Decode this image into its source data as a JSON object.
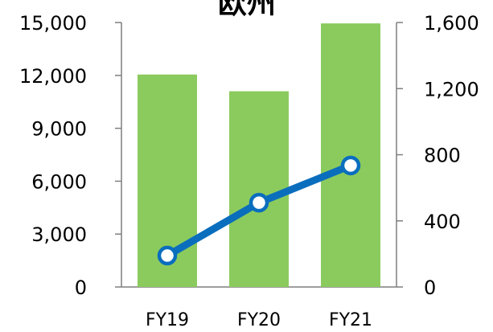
{
  "chart_data": {
    "type": "bar",
    "title": "欧州",
    "categories": [
      "FY19",
      "FY20",
      "FY21"
    ],
    "series": [
      {
        "type": "bar",
        "axis": "left",
        "values": [
          12050,
          11100,
          14950
        ],
        "color": "#8bcb5e"
      },
      {
        "type": "line",
        "axis": "right",
        "values": [
          190,
          510,
          735
        ],
        "color": "#0a6ebd"
      }
    ],
    "left_axis": {
      "ylim": [
        0,
        15000
      ],
      "ticks": [
        0,
        3000,
        6000,
        9000,
        12000,
        15000
      ],
      "tick_labels": [
        "0",
        "3,000",
        "6,000",
        "9,000",
        "12,000",
        "15,000"
      ]
    },
    "right_axis": {
      "ylim": [
        0,
        1600
      ],
      "ticks": [
        0,
        400,
        800,
        1200,
        1600
      ],
      "tick_labels": [
        "0",
        "400",
        "800",
        "1,200",
        "1,600"
      ]
    },
    "grid": false,
    "legend": "none"
  }
}
